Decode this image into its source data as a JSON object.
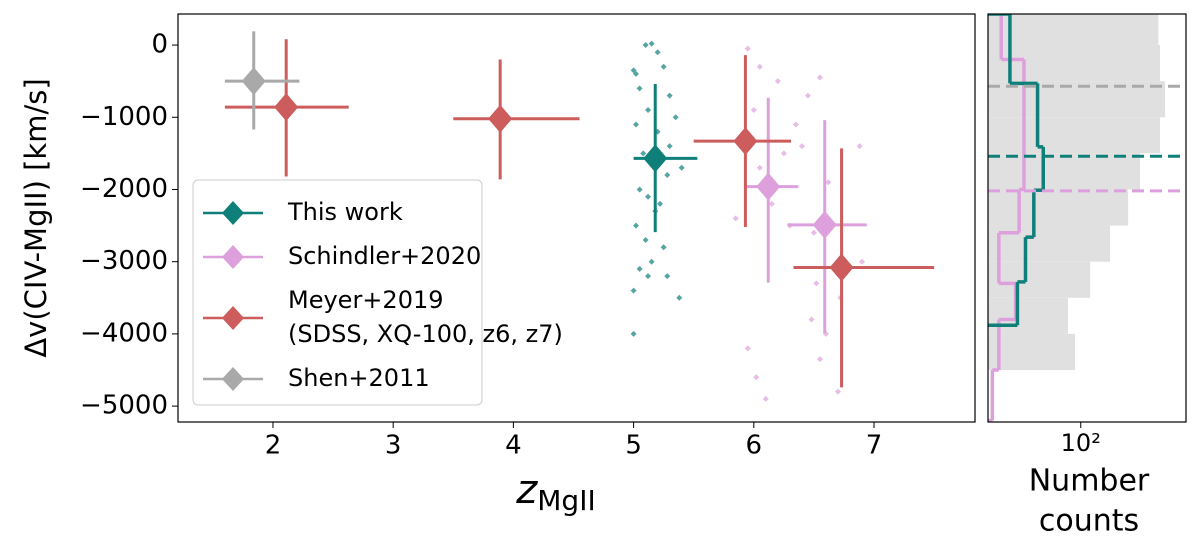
{
  "chart_data": [
    {
      "type": "errorbar",
      "xlabel": "z",
      "xlabel_subscript": "MgII",
      "ylabel": "Δv(CIV-MgII) [km/s]",
      "xlim": [
        1.21,
        7.84
      ],
      "ylim": [
        -5220,
        430
      ],
      "xticks": [
        2,
        3,
        4,
        5,
        6,
        7
      ],
      "yticks": [
        0,
        {
          "value": -1000,
          "label": "−1000"
        },
        {
          "value": -2000,
          "label": "−2000"
        },
        {
          "value": -3000,
          "label": "−3000"
        },
        {
          "value": -4000,
          "label": "−4000"
        },
        {
          "value": -5000,
          "label": "−5000"
        }
      ],
      "legend": "lower left",
      "points": [
        {
          "color": "#0f7f7a",
          "x": [
            5.0,
            5.02,
            5.1,
            5.15,
            5.2,
            5.05,
            5.25,
            5.3,
            5.12,
            5.02,
            5.2,
            5.3,
            5.08,
            5.28,
            5.4,
            5.05,
            5.12,
            5.18,
            5.02,
            5.1,
            5.25,
            5.05,
            5.12,
            5.0,
            5.38,
            5.28,
            5.15,
            5.0,
            5.22,
            5.35
          ],
          "values": [
            -350,
            -400,
            0,
            20,
            -100,
            -600,
            -300,
            -700,
            -900,
            -1100,
            -1200,
            -1400,
            -1500,
            -1800,
            -1700,
            -2000,
            -2100,
            -2300,
            -2500,
            -2700,
            -2800,
            -3100,
            -3200,
            -3400,
            -3500,
            -3200,
            -3000,
            -4000,
            -2200,
            -1000
          ]
        },
        {
          "color": "#dda0dd",
          "x": [
            5.95,
            6.05,
            6.2,
            6.45,
            6.55,
            6.0,
            6.35,
            5.92,
            6.25,
            6.4,
            6.88,
            6.05,
            6.15,
            6.62,
            6.3,
            6.5,
            5.85,
            6.52,
            6.72,
            6.9,
            6.48,
            6.6,
            5.95,
            6.02,
            6.7,
            6.1,
            6.55
          ],
          "values": [
            -50,
            -300,
            -500,
            -700,
            -450,
            -900,
            -1100,
            -1300,
            -1500,
            -1400,
            -1400,
            -1700,
            -2200,
            -1900,
            -2500,
            -2600,
            -2400,
            -3300,
            -3500,
            -3000,
            -3800,
            -4000,
            -4200,
            -4600,
            -4800,
            -4900,
            -4350
          ]
        }
      ],
      "series": [
        {
          "name": "This work",
          "color": "#0f7f7a",
          "x": [
            5.18
          ],
          "xerr": [
            [
              0.18,
              0.35
            ]
          ],
          "values": [
            -1570
          ],
          "yerr": [
            [
              1020,
              1030
            ]
          ]
        },
        {
          "name": "Schindler+2020",
          "color": "#dda0dd",
          "x": [
            6.12,
            6.59
          ],
          "xerr": [
            [
              0.2,
              0.25
            ],
            [
              0.31,
              0.35
            ]
          ],
          "values": [
            -1960,
            -2490
          ],
          "yerr": [
            [
              1330,
              1230
            ],
            [
              1500,
              1450
            ]
          ]
        },
        {
          "name": "Meyer+2019\n(SDSS, XQ-100, z6, z7)",
          "color": "#cd5c5c",
          "x": [
            2.11,
            3.89,
            5.93,
            6.73
          ],
          "xerr": [
            [
              0.51,
              0.52
            ],
            [
              0.39,
              0.66
            ],
            [
              0.43,
              0.38
            ],
            [
              0.4,
              0.77
            ]
          ],
          "values": [
            -860,
            -1020,
            -1330,
            -3080
          ],
          "yerr": [
            [
              960,
              940
            ],
            [
              840,
              820
            ],
            [
              1190,
              1190
            ],
            [
              1660,
              1650
            ]
          ]
        },
        {
          "name": "Shen+2011",
          "color": "#a9a9a9",
          "x": [
            1.84
          ],
          "xerr": [
            [
              0.24,
              0.38
            ]
          ],
          "values": [
            -500
          ],
          "yerr": [
            [
              670,
              690
            ]
          ]
        }
      ]
    },
    {
      "type": "histogram",
      "orientation": "horizontal",
      "xscale": "log",
      "xlabel": [
        "Number",
        "counts"
      ],
      "xlim": [
        18,
        700
      ],
      "ylim": [
        -5220,
        430
      ],
      "xticks": [
        {
          "value": 100,
          "label": "10²"
        }
      ],
      "series": [
        {
          "color": "#e0e0e0",
          "filled": true,
          "bins": [
            -4500,
            -4000,
            -3500,
            -3000,
            -2500,
            -2000,
            -1500,
            -1000,
            -500,
            0,
            500
          ],
          "values": [
            90,
            79,
            119,
            172,
            240,
            299,
            433,
            475,
            433,
            420
          ]
        },
        {
          "color": "#dda0dd",
          "filled": false,
          "bins": [
            -5200,
            -4500,
            -3800,
            -3300,
            -2600,
            -2000,
            -1400,
            -200,
            430
          ],
          "values": [
            19.5,
            22,
            30,
            22,
            32,
            35,
            35,
            23
          ]
        },
        {
          "color": "#0f7f7a",
          "filled": false,
          "bins": [
            -3880,
            -3280,
            -2660,
            -2010,
            -1410,
            -530,
            430
          ],
          "values": [
            31,
            36,
            42,
            50,
            45,
            27
          ]
        }
      ],
      "medians": [
        {
          "color": "#a9a9a9",
          "value": -570
        },
        {
          "color": "#0f7f7a",
          "value": -1540
        },
        {
          "color": "#dda0dd",
          "value": -2020
        }
      ]
    }
  ]
}
